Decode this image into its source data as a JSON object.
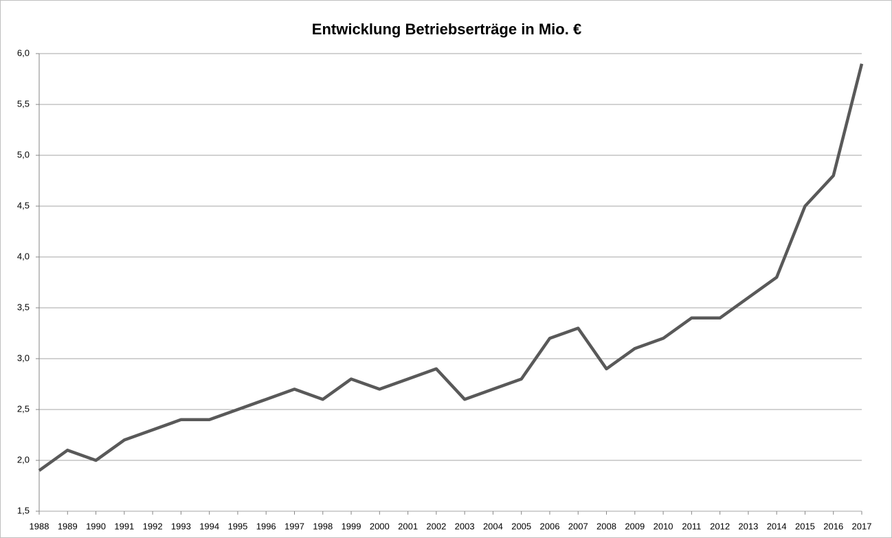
{
  "chart_data": {
    "type": "line",
    "title": "Entwicklung  Betriebserträge  in Mio. €",
    "categories": [
      "1988",
      "1989",
      "1990",
      "1991",
      "1992",
      "1993",
      "1994",
      "1995",
      "1996",
      "1997",
      "1998",
      "1999",
      "2000",
      "2001",
      "2002",
      "2003",
      "2004",
      "2005",
      "2006",
      "2007",
      "2008",
      "2009",
      "2010",
      "2011",
      "2012",
      "2013",
      "2014",
      "2015",
      "2016",
      "2017"
    ],
    "values": [
      1.9,
      2.1,
      2.0,
      2.2,
      2.3,
      2.4,
      2.4,
      2.5,
      2.6,
      2.7,
      2.6,
      2.8,
      2.7,
      2.8,
      2.9,
      2.6,
      2.7,
      2.8,
      3.2,
      3.3,
      2.9,
      3.1,
      3.2,
      3.4,
      3.4,
      3.6,
      3.8,
      4.5,
      4.8,
      5.9
    ],
    "color": "#595959",
    "ylim": [
      1.5,
      6.0
    ],
    "yticks": [
      {
        "value": 1.5,
        "label": "1,5"
      },
      {
        "value": 2.0,
        "label": "2,0"
      },
      {
        "value": 2.5,
        "label": "2,5"
      },
      {
        "value": 3.0,
        "label": "3,0"
      },
      {
        "value": 3.5,
        "label": "3,5"
      },
      {
        "value": 4.0,
        "label": "4,0"
      },
      {
        "value": 4.5,
        "label": "4,5"
      },
      {
        "value": 5.0,
        "label": "5,0"
      },
      {
        "value": 5.5,
        "label": "5,5"
      },
      {
        "value": 6.0,
        "label": "6,0"
      }
    ],
    "grid": true
  }
}
